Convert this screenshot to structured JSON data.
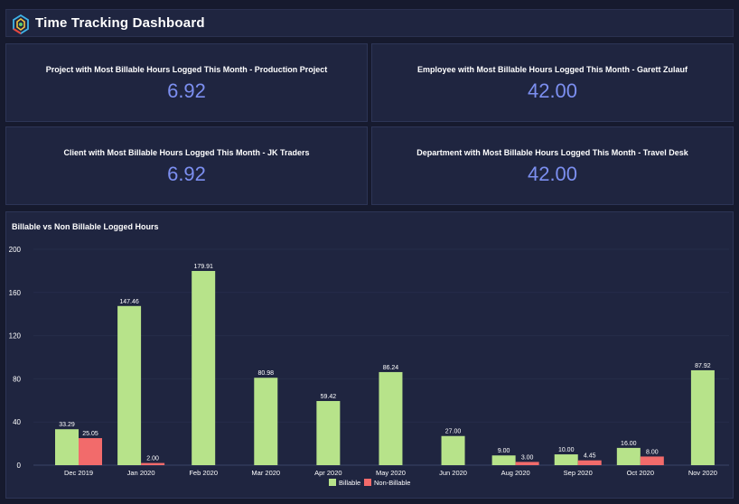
{
  "header": {
    "title": "Time Tracking Dashboard",
    "logo_icon": "hexagon-logo-icon"
  },
  "cards": [
    {
      "label": "Project with Most Billable Hours Logged This Month - Production Project",
      "value": "6.92"
    },
    {
      "label": "Employee with Most Billable Hours Logged This Month - Garett Zulauf",
      "value": "42.00"
    },
    {
      "label": "Client with Most Billable Hours Logged This Month - JK Traders",
      "value": "6.92"
    },
    {
      "label": "Department with Most Billable Hours Logged This Month - Travel Desk",
      "value": "42.00"
    }
  ],
  "colors": {
    "billable": "#b7e38a",
    "non_billable": "#f26b6b",
    "card_value": "#7c8ff0"
  },
  "chart_data": {
    "type": "bar",
    "title": "Billable vs Non Billable Logged Hours",
    "categories": [
      "Dec 2019",
      "Jan 2020",
      "Feb 2020",
      "Mar 2020",
      "Apr 2020",
      "May 2020",
      "Jun 2020",
      "Aug 2020",
      "Sep 2020",
      "Oct 2020",
      "Nov 2020"
    ],
    "series": [
      {
        "name": "Billable",
        "values": [
          33.29,
          147.46,
          179.91,
          80.98,
          59.42,
          86.24,
          27.0,
          9.0,
          10.0,
          16.0,
          87.92
        ],
        "labels": [
          "33.29",
          "147.46",
          "179.91",
          "80.98",
          "59.42",
          "86.24",
          "27.00",
          "9.00",
          "10.00",
          "16.00",
          "87.92"
        ]
      },
      {
        "name": "Non-Billable",
        "values": [
          25.05,
          2.0,
          null,
          null,
          null,
          null,
          null,
          3.0,
          4.45,
          8.0,
          null
        ],
        "labels": [
          "25.05",
          "2.00",
          null,
          null,
          null,
          null,
          null,
          "3.00",
          "4.45",
          "8.00",
          null
        ]
      }
    ],
    "ylim": [
      0,
      200
    ],
    "yticks": [
      "0",
      "40",
      "80",
      "120",
      "160",
      "200"
    ],
    "grid": true,
    "legend": "bottom-center"
  }
}
